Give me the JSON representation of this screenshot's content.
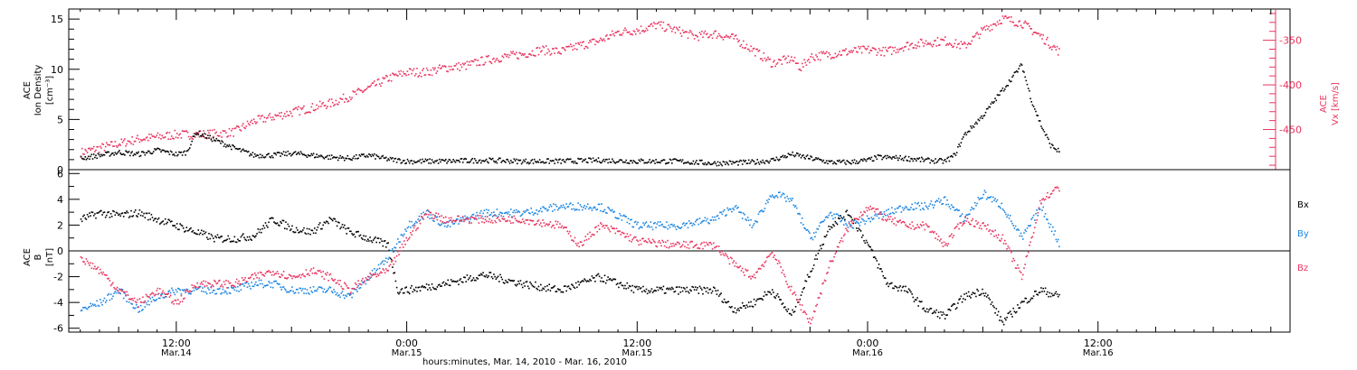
{
  "colors": {
    "black": "#000000",
    "pink": "#e8345f",
    "blue": "#1c86e0"
  },
  "chart_data": [
    {
      "type": "scatter",
      "panel": "top",
      "ylabel_lines": [
        "ACE",
        "Ion Density",
        "[cm⁻³]"
      ],
      "ylim": [
        0,
        16
      ],
      "yticks": [
        "0",
        "5",
        "10",
        "15"
      ],
      "y2label_lines": [
        "ACE",
        "Vx [km/s]"
      ],
      "y2lim": [
        -495,
        -315
      ],
      "y2ticks": [
        "-350",
        "-400",
        "-450"
      ],
      "series": [
        {
          "axis": "left",
          "color": "#000000",
          "points": [
            [
              7,
              1.2
            ],
            [
              9,
              1.8
            ],
            [
              10,
              1.6
            ],
            [
              11,
              2.0
            ],
            [
              12,
              1.6
            ],
            [
              12.5,
              1.8
            ],
            [
              13,
              3.8
            ],
            [
              14,
              3.0
            ],
            [
              15,
              2.2
            ],
            [
              16,
              1.5
            ],
            [
              17,
              1.5
            ],
            [
              18,
              1.7
            ],
            [
              19,
              1.5
            ],
            [
              20,
              1.3
            ],
            [
              21,
              1.2
            ],
            [
              22,
              1.5
            ],
            [
              23,
              1.1
            ],
            [
              24,
              0.9
            ],
            [
              26,
              0.9
            ],
            [
              28,
              1.0
            ],
            [
              30,
              0.9
            ],
            [
              32,
              0.9
            ],
            [
              34,
              1.0
            ],
            [
              36,
              0.9
            ],
            [
              38,
              0.9
            ],
            [
              40,
              0.7
            ],
            [
              42,
              0.8
            ],
            [
              43,
              1.0
            ],
            [
              44,
              1.6
            ],
            [
              45,
              1.2
            ],
            [
              46,
              0.8
            ],
            [
              47,
              0.8
            ],
            [
              48,
              1.0
            ],
            [
              48.5,
              1.3
            ],
            [
              50,
              1.2
            ],
            [
              51,
              1.0
            ],
            [
              52,
              0.9
            ],
            [
              52.5,
              1.5
            ],
            [
              53,
              3.5
            ],
            [
              54,
              5.5
            ],
            [
              55,
              8.0
            ],
            [
              56,
              10.5
            ],
            [
              56.5,
              7.0
            ],
            [
              57,
              4.5
            ],
            [
              57.5,
              2.5
            ],
            [
              58,
              1.8
            ]
          ]
        },
        {
          "axis": "right",
          "color": "#e8345f",
          "points": [
            [
              7,
              -475
            ],
            [
              9,
              -465
            ],
            [
              10,
              -460
            ],
            [
              12,
              -455
            ],
            [
              13,
              -455
            ],
            [
              14,
              -454
            ],
            [
              15,
              -452
            ],
            [
              16,
              -440
            ],
            [
              17,
              -435
            ],
            [
              18,
              -430
            ],
            [
              19,
              -425
            ],
            [
              20,
              -420
            ],
            [
              21,
              -412
            ],
            [
              22,
              -403
            ],
            [
              23,
              -392
            ],
            [
              24,
              -385
            ],
            [
              25,
              -385
            ],
            [
              26,
              -380
            ],
            [
              27,
              -378
            ],
            [
              28,
              -372
            ],
            [
              29,
              -368
            ],
            [
              30,
              -365
            ],
            [
              31,
              -360
            ],
            [
              32,
              -362
            ],
            [
              33,
              -355
            ],
            [
              34,
              -350
            ],
            [
              35,
              -340
            ],
            [
              36,
              -338
            ],
            [
              37,
              -332
            ],
            [
              38,
              -338
            ],
            [
              39,
              -345
            ],
            [
              40,
              -342
            ],
            [
              41,
              -347
            ],
            [
              42,
              -360
            ],
            [
              43,
              -375
            ],
            [
              44,
              -370
            ],
            [
              44.5,
              -380
            ],
            [
              45,
              -368
            ],
            [
              46,
              -365
            ],
            [
              47,
              -362
            ],
            [
              48,
              -360
            ],
            [
              49,
              -362
            ],
            [
              50,
              -355
            ],
            [
              51,
              -352
            ],
            [
              52,
              -350
            ],
            [
              53,
              -356
            ],
            [
              54,
              -338
            ],
            [
              55,
              -325
            ],
            [
              56,
              -330
            ],
            [
              57,
              -345
            ],
            [
              58,
              -363
            ]
          ]
        }
      ]
    },
    {
      "type": "scatter",
      "panel": "bottom",
      "ylabel_lines": [
        "ACE",
        "B",
        "[nT]"
      ],
      "ylim": [
        -6.3,
        6.3
      ],
      "yticks": [
        "6",
        "4",
        "2",
        "0",
        "-2",
        "-4",
        "-6"
      ],
      "series": [
        {
          "name": "Bx",
          "color": "#000000",
          "points": [
            [
              7,
              2.5
            ],
            [
              8,
              3.0
            ],
            [
              9,
              2.8
            ],
            [
              10,
              3.0
            ],
            [
              11,
              2.5
            ],
            [
              12,
              2.0
            ],
            [
              13,
              1.5
            ],
            [
              14,
              1.0
            ],
            [
              15,
              1.0
            ],
            [
              16,
              1.2
            ],
            [
              17,
              2.5
            ],
            [
              18,
              1.8
            ],
            [
              19,
              1.5
            ],
            [
              20,
              2.5
            ],
            [
              21,
              1.5
            ],
            [
              22,
              1.0
            ],
            [
              23,
              0.5
            ],
            [
              23.5,
              -3.0
            ],
            [
              24,
              -3.0
            ],
            [
              26,
              -2.5
            ],
            [
              28,
              -1.8
            ],
            [
              30,
              -2.5
            ],
            [
              32,
              -3.0
            ],
            [
              34,
              -2.0
            ],
            [
              36,
              -3.0
            ],
            [
              38,
              -3.0
            ],
            [
              40,
              -3.0
            ],
            [
              41,
              -4.5
            ],
            [
              42,
              -4.0
            ],
            [
              43,
              -3.0
            ],
            [
              44,
              -5.0
            ],
            [
              45,
              -1.5
            ],
            [
              46,
              2.0
            ],
            [
              47,
              3.0
            ],
            [
              48,
              0.5
            ],
            [
              49,
              -2.5
            ],
            [
              50,
              -3.0
            ],
            [
              51,
              -4.5
            ],
            [
              52,
              -5.0
            ],
            [
              53,
              -3.5
            ],
            [
              54,
              -3.0
            ],
            [
              55,
              -5.5
            ],
            [
              56,
              -4.0
            ],
            [
              57,
              -3.0
            ],
            [
              58,
              -3.5
            ]
          ]
        },
        {
          "name": "By",
          "color": "#1c86e0",
          "points": [
            [
              7,
              -4.5
            ],
            [
              8,
              -4.0
            ],
            [
              9,
              -3.0
            ],
            [
              10,
              -4.5
            ],
            [
              11,
              -3.5
            ],
            [
              12,
              -3.0
            ],
            [
              13,
              -3.0
            ],
            [
              14,
              -3.0
            ],
            [
              15,
              -3.0
            ],
            [
              16,
              -2.5
            ],
            [
              17,
              -2.5
            ],
            [
              18,
              -3.0
            ],
            [
              19,
              -3.0
            ],
            [
              20,
              -3.0
            ],
            [
              21,
              -3.5
            ],
            [
              22,
              -2.0
            ],
            [
              23,
              -0.5
            ],
            [
              24,
              2.0
            ],
            [
              25,
              3.0
            ],
            [
              26,
              2.0
            ],
            [
              28,
              3.0
            ],
            [
              30,
              3.0
            ],
            [
              32,
              3.5
            ],
            [
              34,
              3.5
            ],
            [
              36,
              2.0
            ],
            [
              38,
              2.0
            ],
            [
              40,
              2.5
            ],
            [
              41,
              3.5
            ],
            [
              42,
              2.0
            ],
            [
              43,
              4.5
            ],
            [
              44,
              4.0
            ],
            [
              45,
              1.0
            ],
            [
              46,
              3.0
            ],
            [
              47,
              2.0
            ],
            [
              48,
              2.5
            ],
            [
              49,
              3.0
            ],
            [
              50,
              3.5
            ],
            [
              51,
              3.5
            ],
            [
              52,
              4.0
            ],
            [
              53,
              2.5
            ],
            [
              54,
              4.5
            ],
            [
              55,
              3.5
            ],
            [
              56,
              1.0
            ],
            [
              57,
              3.5
            ],
            [
              58,
              0.5
            ]
          ]
        },
        {
          "name": "Bz",
          "color": "#e8345f",
          "points": [
            [
              7,
              -0.5
            ],
            [
              8,
              -1.5
            ],
            [
              9,
              -3.0
            ],
            [
              10,
              -4.0
            ],
            [
              11,
              -3.0
            ],
            [
              12,
              -4.0
            ],
            [
              13,
              -2.5
            ],
            [
              14,
              -2.5
            ],
            [
              15,
              -2.5
            ],
            [
              16,
              -2.0
            ],
            [
              17,
              -1.5
            ],
            [
              18,
              -2.0
            ],
            [
              19,
              -1.5
            ],
            [
              20,
              -2.0
            ],
            [
              21,
              -3.0
            ],
            [
              22,
              -2.0
            ],
            [
              23,
              -1.5
            ],
            [
              24,
              1.0
            ],
            [
              25,
              3.0
            ],
            [
              26,
              2.5
            ],
            [
              28,
              2.5
            ],
            [
              30,
              2.5
            ],
            [
              32,
              2.0
            ],
            [
              33,
              0.5
            ],
            [
              34,
              2.0
            ],
            [
              35,
              1.5
            ],
            [
              36,
              0.8
            ],
            [
              38,
              0.5
            ],
            [
              40,
              0.5
            ],
            [
              41,
              -1.0
            ],
            [
              42,
              -2.0
            ],
            [
              43,
              0.0
            ],
            [
              44,
              -3.0
            ],
            [
              45,
              -5.5
            ],
            [
              46,
              -1.0
            ],
            [
              47,
              2.0
            ],
            [
              48,
              3.5
            ],
            [
              49,
              2.5
            ],
            [
              50,
              2.0
            ],
            [
              51,
              2.0
            ],
            [
              52,
              0.5
            ],
            [
              53,
              2.5
            ],
            [
              54,
              2.0
            ],
            [
              55,
              1.0
            ],
            [
              56,
              -2.0
            ],
            [
              57,
              4.0
            ],
            [
              58,
              5.0
            ]
          ]
        }
      ]
    }
  ],
  "x_axis": {
    "range_hours": [
      6.4,
      70.0
    ],
    "major_hours": [
      12,
      24,
      36,
      48,
      60
    ],
    "tick_labels": [
      {
        "time": "12:00",
        "date": "Mar.14"
      },
      {
        "time": "0:00",
        "date": "Mar.15"
      },
      {
        "time": "12:00",
        "date": "Mar.15"
      },
      {
        "time": "0:00",
        "date": "Mar.16"
      },
      {
        "time": "12:00",
        "date": "Mar.16"
      }
    ],
    "title": "hours:minutes, Mar. 14, 2010 - Mar. 16, 2010"
  },
  "legend": [
    "Bx",
    "By",
    "Bz"
  ]
}
